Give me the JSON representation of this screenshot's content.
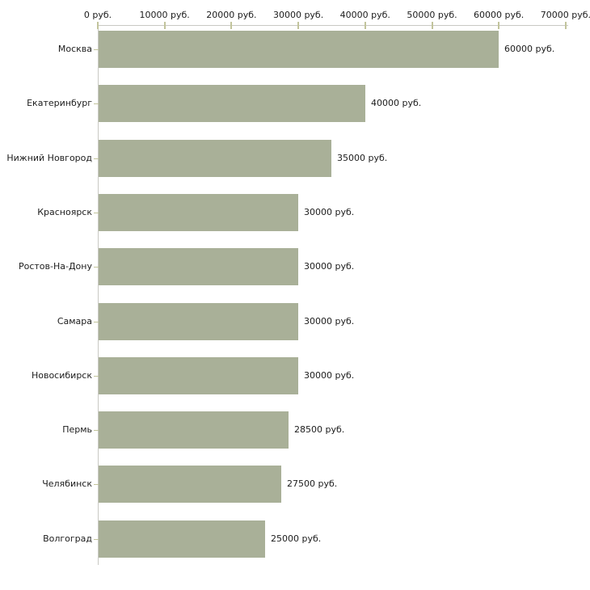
{
  "chart_data": {
    "type": "bar",
    "orientation": "horizontal",
    "title": "",
    "unit": "руб.",
    "categories": [
      "Москва",
      "Екатеринбург",
      "Нижний Новгород",
      "Красноярск",
      "Ростов-На-Дону",
      "Самара",
      "Новосибирск",
      "Пермь",
      "Челябинск",
      "Волгоград"
    ],
    "values": [
      60000,
      40000,
      35000,
      30000,
      30000,
      30000,
      30000,
      28500,
      27500,
      25000
    ],
    "value_labels": [
      "60000 руб.",
      "40000 руб.",
      "35000 руб.",
      "30000 руб.",
      "30000 руб.",
      "30000 руб.",
      "30000 руб.",
      "28500 руб.",
      "27500 руб.",
      "25000 руб."
    ],
    "x_axis": {
      "position": "top",
      "xlim": [
        0,
        70000
      ],
      "tick_values": [
        0,
        10000,
        20000,
        30000,
        40000,
        50000,
        60000,
        70000
      ],
      "tick_labels": [
        "0 руб.",
        "10000 руб.",
        "20000 руб.",
        "30000 руб.",
        "40000 руб.",
        "50000 руб.",
        "60000 руб.",
        "70000 руб."
      ]
    },
    "grid": "off",
    "legend": "none",
    "colors": {
      "bar": "#a9b098",
      "axis_line": "#c9c9c3",
      "tick_mark": "#c2c49c",
      "text": "#1c1c1c",
      "background": "#ffffff"
    }
  }
}
